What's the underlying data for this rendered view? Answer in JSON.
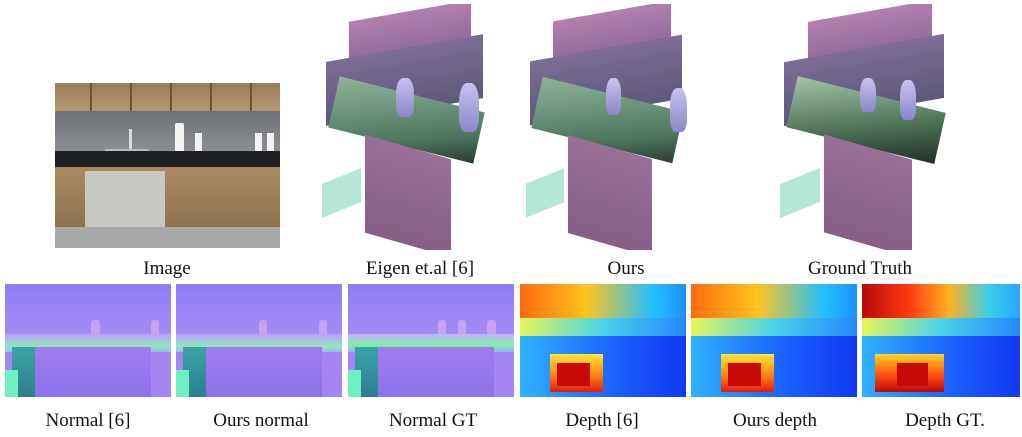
{
  "figure": {
    "top_row": {
      "captions": [
        "Image",
        "Eigen et.al [6]",
        "Ours",
        "Ground Truth"
      ]
    },
    "bottom_row": {
      "captions": [
        "Normal [6]",
        "Ours normal",
        "Normal GT",
        "Depth [6]",
        "Ours depth",
        "Depth GT."
      ]
    }
  }
}
